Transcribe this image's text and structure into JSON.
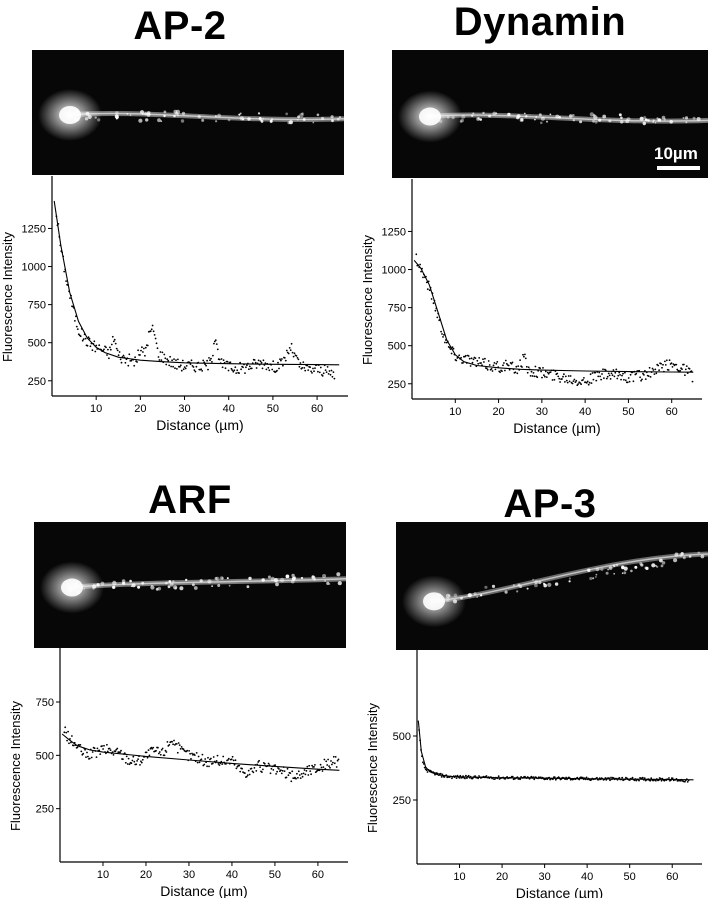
{
  "panels": [
    {
      "title": "AP-2",
      "scale_bar": "",
      "image_style": {
        "soma_color": "#f4f4f4",
        "process_color": "#cfcfcf"
      },
      "chart_data": {
        "type": "scatter",
        "title": "AP-2",
        "xlabel": "Distance (µm)",
        "ylabel": "Fluorescence Intensity",
        "xlim": [
          0,
          67
        ],
        "ylim": [
          150,
          1450
        ],
        "xticks": [
          10,
          20,
          30,
          40,
          50,
          60
        ],
        "yticks": [
          250,
          500,
          750,
          1000,
          1250
        ],
        "grid": false,
        "series": [
          {
            "points": [
              [
                1,
                1350
              ],
              [
                2,
                1120
              ],
              [
                3,
                960
              ],
              [
                4,
                820
              ],
              [
                5,
                690
              ],
              [
                6,
                590
              ],
              [
                7,
                540
              ],
              [
                8,
                510
              ],
              [
                9,
                490
              ],
              [
                10,
                470
              ],
              [
                11,
                460
              ],
              [
                12,
                445
              ],
              [
                13,
                430
              ],
              [
                14,
                540
              ],
              [
                15,
                420
              ],
              [
                16,
                400
              ],
              [
                17,
                390
              ],
              [
                18,
                380
              ],
              [
                19,
                380
              ],
              [
                20,
                450
              ],
              [
                21,
                430
              ],
              [
                22,
                560
              ],
              [
                23,
                590
              ],
              [
                24,
                430
              ],
              [
                26,
                390
              ],
              [
                28,
                360
              ],
              [
                30,
                350
              ],
              [
                32,
                350
              ],
              [
                34,
                345
              ],
              [
                36,
                370
              ],
              [
                37,
                570
              ],
              [
                38,
                360
              ],
              [
                40,
                340
              ],
              [
                42,
                330
              ],
              [
                44,
                340
              ],
              [
                46,
                360
              ],
              [
                48,
                370
              ],
              [
                50,
                340
              ],
              [
                52,
                360
              ],
              [
                54,
                470
              ],
              [
                56,
                350
              ],
              [
                58,
                320
              ],
              [
                60,
                330
              ],
              [
                62,
                310
              ],
              [
                64,
                290
              ]
            ]
          },
          {
            "curve": [
              [
                0.5,
                1430
              ],
              [
                2,
                1140
              ],
              [
                4,
                830
              ],
              [
                6,
                640
              ],
              [
                8,
                530
              ],
              [
                10,
                470
              ],
              [
                12,
                435
              ],
              [
                15,
                405
              ],
              [
                20,
                385
              ],
              [
                25,
                375
              ],
              [
                30,
                368
              ],
              [
                40,
                362
              ],
              [
                50,
                358
              ],
              [
                60,
                356
              ],
              [
                65,
                355
              ]
            ]
          }
        ]
      }
    },
    {
      "title": "Dynamin",
      "scale_bar": "10µm",
      "image_style": {
        "soma_color": "#f4f4f4",
        "process_color": "#cfcfcf"
      },
      "chart_data": {
        "type": "scatter",
        "title": "Dynamin",
        "xlabel": "Distance (µm)",
        "ylabel": "Fluorescence Intensity",
        "xlim": [
          0,
          67
        ],
        "ylim": [
          150,
          1450
        ],
        "xticks": [
          10,
          20,
          30,
          40,
          50,
          60
        ],
        "yticks": [
          250,
          500,
          750,
          1000,
          1250
        ],
        "grid": false,
        "series": [
          {
            "points": [
              [
                1,
                1080
              ],
              [
                2,
                1010
              ],
              [
                3,
                950
              ],
              [
                4,
                880
              ],
              [
                5,
                800
              ],
              [
                6,
                700
              ],
              [
                7,
                600
              ],
              [
                8,
                520
              ],
              [
                9,
                470
              ],
              [
                10,
                440
              ],
              [
                11,
                420
              ],
              [
                12,
                420
              ],
              [
                14,
                400
              ],
              [
                16,
                380
              ],
              [
                18,
                370
              ],
              [
                20,
                360
              ],
              [
                22,
                370
              ],
              [
                24,
                340
              ],
              [
                26,
                420
              ],
              [
                27,
                330
              ],
              [
                28,
                340
              ],
              [
                30,
                320
              ],
              [
                32,
                310
              ],
              [
                34,
                300
              ],
              [
                36,
                290
              ],
              [
                38,
                280
              ],
              [
                40,
                270
              ],
              [
                42,
                290
              ],
              [
                44,
                310
              ],
              [
                46,
                300
              ],
              [
                48,
                310
              ],
              [
                50,
                290
              ],
              [
                52,
                300
              ],
              [
                54,
                310
              ],
              [
                56,
                330
              ],
              [
                58,
                360
              ],
              [
                60,
                380
              ],
              [
                62,
                360
              ],
              [
                64,
                330
              ],
              [
                65,
                280
              ]
            ]
          },
          {
            "curve": [
              [
                0.5,
                1060
              ],
              [
                2,
                1010
              ],
              [
                4,
                900
              ],
              [
                6,
                720
              ],
              [
                8,
                540
              ],
              [
                10,
                440
              ],
              [
                12,
                395
              ],
              [
                15,
                370
              ],
              [
                20,
                355
              ],
              [
                25,
                345
              ],
              [
                30,
                340
              ],
              [
                40,
                334
              ],
              [
                50,
                330
              ],
              [
                60,
                327
              ],
              [
                65,
                326
              ]
            ]
          }
        ]
      }
    },
    {
      "title": "ARF",
      "scale_bar": "",
      "image_style": {
        "soma_color": "#e8e8e8",
        "process_color": "#d6d6d6"
      },
      "chart_data": {
        "type": "scatter",
        "title": "ARF",
        "xlabel": "Distance (µm)",
        "ylabel": "Fluorescence Intensity",
        "xlim": [
          0,
          67
        ],
        "ylim": [
          0,
          900
        ],
        "xticks": [
          10,
          20,
          30,
          40,
          50,
          60
        ],
        "yticks": [
          250,
          500,
          750
        ],
        "grid": false,
        "series": [
          {
            "points": [
              [
                1,
                620
              ],
              [
                2,
                580
              ],
              [
                3,
                560
              ],
              [
                4,
                540
              ],
              [
                5,
                520
              ],
              [
                6,
                500
              ],
              [
                8,
                510
              ],
              [
                10,
                530
              ],
              [
                12,
                520
              ],
              [
                14,
                510
              ],
              [
                16,
                480
              ],
              [
                18,
                470
              ],
              [
                20,
                500
              ],
              [
                22,
                520
              ],
              [
                24,
                510
              ],
              [
                26,
                580
              ],
              [
                28,
                520
              ],
              [
                30,
                500
              ],
              [
                32,
                490
              ],
              [
                34,
                470
              ],
              [
                36,
                480
              ],
              [
                38,
                470
              ],
              [
                40,
                480
              ],
              [
                42,
                430
              ],
              [
                44,
                420
              ],
              [
                46,
                450
              ],
              [
                48,
                440
              ],
              [
                50,
                430
              ],
              [
                52,
                420
              ],
              [
                54,
                400
              ],
              [
                56,
                410
              ],
              [
                58,
                430
              ],
              [
                60,
                440
              ],
              [
                62,
                460
              ],
              [
                64,
                470
              ],
              [
                65,
                450
              ]
            ]
          },
          {
            "curve": [
              [
                0.5,
                600
              ],
              [
                2,
                575
              ],
              [
                4,
                545
              ],
              [
                7,
                525
              ],
              [
                10,
                515
              ],
              [
                20,
                495
              ],
              [
                30,
                478
              ],
              [
                40,
                462
              ],
              [
                50,
                448
              ],
              [
                60,
                435
              ],
              [
                65,
                430
              ]
            ]
          }
        ]
      }
    },
    {
      "title": "AP-3",
      "scale_bar": "",
      "image_style": {
        "soma_color": "#dcdcdc",
        "process_color": "#bdbdbd"
      },
      "chart_data": {
        "type": "scatter",
        "title": "AP-3",
        "xlabel": "Distance (µm)",
        "ylabel": "Fluorescence Intensity",
        "xlim": [
          0,
          67
        ],
        "ylim": [
          0,
          750
        ],
        "xticks": [
          10,
          20,
          30,
          40,
          50,
          60
        ],
        "yticks": [
          250,
          500
        ],
        "grid": false,
        "series": [
          {
            "points": [
              [
                0.5,
                520
              ],
              [
                1,
                430
              ],
              [
                1.5,
                390
              ],
              [
                2,
                370
              ],
              [
                3,
                360
              ],
              [
                4,
                355
              ],
              [
                5,
                350
              ],
              [
                6,
                345
              ],
              [
                8,
                340
              ],
              [
                10,
                340
              ],
              [
                15,
                338
              ],
              [
                20,
                337
              ],
              [
                25,
                336
              ],
              [
                30,
                335
              ],
              [
                35,
                334
              ],
              [
                40,
                333
              ],
              [
                45,
                332
              ],
              [
                50,
                332
              ],
              [
                55,
                331
              ],
              [
                60,
                330
              ],
              [
                64,
                325
              ]
            ]
          },
          {
            "curve": [
              [
                0.3,
                560
              ],
              [
                1,
                440
              ],
              [
                2,
                380
              ],
              [
                3,
                360
              ],
              [
                5,
                348
              ],
              [
                8,
                342
              ],
              [
                15,
                338
              ],
              [
                30,
                335
              ],
              [
                45,
                332
              ],
              [
                60,
                330
              ],
              [
                65,
                329
              ]
            ]
          }
        ]
      }
    }
  ]
}
